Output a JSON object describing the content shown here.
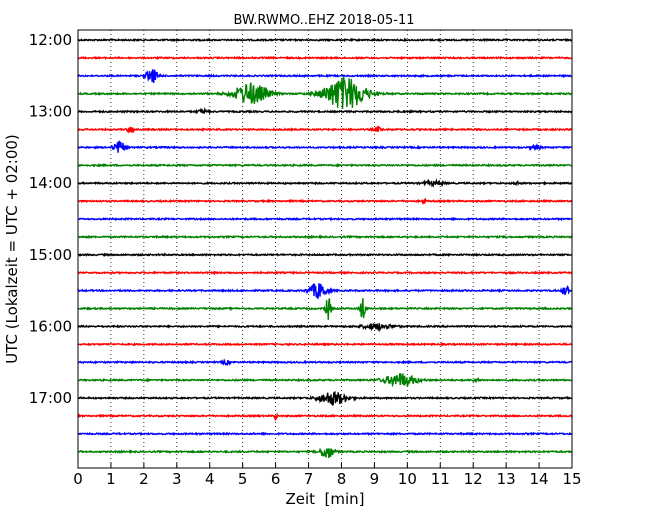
{
  "chart_data": {
    "type": "line",
    "title": "BW.RWMO..EHZ 2018-05-11",
    "xlabel": "Zeit  [min]",
    "ylabel": "UTC (Lokalzeit = UTC + 02:00)",
    "xlim": [
      0,
      15
    ],
    "x_ticks": [
      "0",
      "1",
      "2",
      "3",
      "4",
      "5",
      "6",
      "7",
      "8",
      "9",
      "10",
      "11",
      "12",
      "13",
      "14",
      "15"
    ],
    "y_ticks": [
      {
        "label": "12:00",
        "trace": 0
      },
      {
        "label": "13:00",
        "trace": 4
      },
      {
        "label": "14:00",
        "trace": 8
      },
      {
        "label": "15:00",
        "trace": 12
      },
      {
        "label": "16:00",
        "trace": 16
      },
      {
        "label": "17:00",
        "trace": 20
      }
    ],
    "grid": "vertical dotted",
    "trace_interval_min": 15,
    "trace_colors": [
      "#000000",
      "#ff0000",
      "#0000ff",
      "#008000"
    ],
    "traces": [
      {
        "start": "12:00",
        "events": []
      },
      {
        "start": "12:15",
        "events": []
      },
      {
        "start": "12:30",
        "events": [
          {
            "t": 2.25,
            "amp": 7,
            "dur": 0.35
          }
        ]
      },
      {
        "start": "12:45",
        "events": [
          {
            "t": 5.25,
            "amp": 11,
            "dur": 1.0
          },
          {
            "t": 8.1,
            "amp": 17,
            "dur": 1.2
          }
        ]
      },
      {
        "start": "13:00",
        "events": [
          {
            "t": 3.8,
            "amp": 2,
            "dur": 0.3
          }
        ]
      },
      {
        "start": "13:15",
        "events": [
          {
            "t": 1.6,
            "amp": 3,
            "dur": 0.2
          },
          {
            "t": 9.1,
            "amp": 2.5,
            "dur": 0.2
          }
        ]
      },
      {
        "start": "13:30",
        "events": [
          {
            "t": 1.25,
            "amp": 6,
            "dur": 0.35
          },
          {
            "t": 13.9,
            "amp": 2,
            "dur": 0.3
          }
        ]
      },
      {
        "start": "13:45",
        "events": []
      },
      {
        "start": "14:00",
        "events": [
          {
            "t": 10.8,
            "amp": 2,
            "dur": 0.6
          },
          {
            "t": 13.3,
            "amp": 4,
            "dur": 0.1
          }
        ]
      },
      {
        "start": "14:15",
        "events": [
          {
            "t": 10.5,
            "amp": 2,
            "dur": 0.1
          }
        ]
      },
      {
        "start": "14:30",
        "events": []
      },
      {
        "start": "14:45",
        "events": []
      },
      {
        "start": "15:00",
        "events": []
      },
      {
        "start": "15:15",
        "events": []
      },
      {
        "start": "15:30",
        "events": [
          {
            "t": 7.3,
            "amp": 8,
            "dur": 0.5
          },
          {
            "t": 14.8,
            "amp": 9,
            "dur": 0.15
          }
        ]
      },
      {
        "start": "15:45",
        "events": [
          {
            "t": 7.6,
            "amp": 12,
            "dur": 0.15
          },
          {
            "t": 8.65,
            "amp": 13,
            "dur": 0.15
          }
        ]
      },
      {
        "start": "16:00",
        "events": [
          {
            "t": 9.1,
            "amp": 3,
            "dur": 0.9
          }
        ]
      },
      {
        "start": "16:15",
        "events": []
      },
      {
        "start": "16:30",
        "events": [
          {
            "t": 4.5,
            "amp": 2,
            "dur": 0.2
          }
        ]
      },
      {
        "start": "16:45",
        "events": [
          {
            "t": 9.8,
            "amp": 7,
            "dur": 0.9
          },
          {
            "t": 12.1,
            "amp": 2,
            "dur": 0.2
          }
        ]
      },
      {
        "start": "17:00",
        "events": [
          {
            "t": 7.75,
            "amp": 7,
            "dur": 0.8
          }
        ]
      },
      {
        "start": "17:15",
        "events": [
          {
            "t": 6.0,
            "amp": 3,
            "dur": 0.1
          }
        ]
      },
      {
        "start": "17:30",
        "events": []
      },
      {
        "start": "17:45",
        "events": [
          {
            "t": 7.55,
            "amp": 7,
            "dur": 0.4
          }
        ]
      }
    ]
  }
}
